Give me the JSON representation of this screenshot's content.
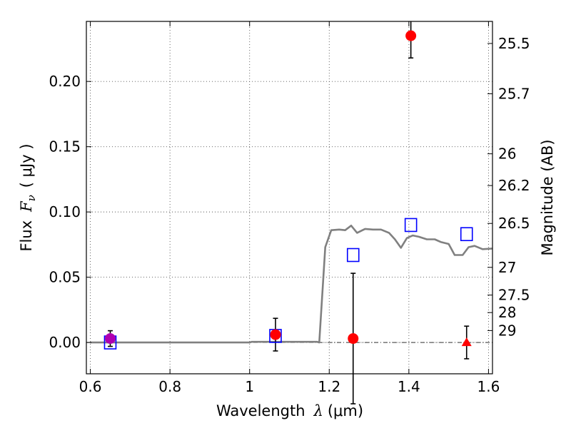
{
  "chart_data": {
    "type": "scatter",
    "xlabel": "Wavelength",
    "xlabel_symbol": "λ",
    "xlabel_unit": "(μm)",
    "ylabel": "Flux",
    "ylabel_symbol": "F",
    "ylabel_sub": "ν",
    "ylabel_unit": "( μJy )",
    "y2label": "Magnitude (AB)",
    "xlim": [
      0.59,
      1.61
    ],
    "ylim": [
      -0.024,
      0.246
    ],
    "grid": true,
    "xticks": [
      {
        "value": 0.6,
        "label": "0.6"
      },
      {
        "value": 0.8,
        "label": "0.8"
      },
      {
        "value": 1.0,
        "label": "1"
      },
      {
        "value": 1.2,
        "label": "1.2"
      },
      {
        "value": 1.4,
        "label": "1.4"
      },
      {
        "value": 1.6,
        "label": "1.6"
      }
    ],
    "yticks": [
      {
        "value": 0.0,
        "label": "0.00"
      },
      {
        "value": 0.05,
        "label": "0.05"
      },
      {
        "value": 0.1,
        "label": "0.10"
      },
      {
        "value": 0.15,
        "label": "0.15"
      },
      {
        "value": 0.2,
        "label": "0.20"
      }
    ],
    "y2ticks": [
      {
        "mag": 25.5,
        "label": "25.5"
      },
      {
        "mag": 25.7,
        "label": "25.7"
      },
      {
        "mag": 26.0,
        "label": "26"
      },
      {
        "mag": 26.2,
        "label": "26.2"
      },
      {
        "mag": 26.5,
        "label": "26.5"
      },
      {
        "mag": 27.0,
        "label": "27"
      },
      {
        "mag": 27.5,
        "label": "27.5"
      },
      {
        "mag": 28.0,
        "label": "28"
      },
      {
        "mag": 29.0,
        "label": "29"
      }
    ],
    "colors": {
      "observed": "#ff0000",
      "model": "#0000ff",
      "overlap": "#b000b0",
      "sed": "#808080",
      "errorbar": "#000000",
      "grid": "#555555"
    },
    "observed": [
      {
        "x": 0.65,
        "y": 0.003,
        "yerr": 0.006,
        "marker": "circle"
      },
      {
        "x": 1.065,
        "y": 0.006,
        "yerr": 0.0125,
        "marker": "circle"
      },
      {
        "x": 1.26,
        "y": 0.003,
        "yerr": 0.05,
        "marker": "circle"
      },
      {
        "x": 1.405,
        "y": 0.235,
        "yerr": 0.017,
        "marker": "circle"
      },
      {
        "x": 1.545,
        "y": 0.0,
        "yerr": 0.0125,
        "marker": "triangle"
      }
    ],
    "model_points": [
      {
        "x": 0.65,
        "y": 0.0
      },
      {
        "x": 1.065,
        "y": 0.005
      },
      {
        "x": 1.26,
        "y": 0.067
      },
      {
        "x": 1.405,
        "y": 0.09
      },
      {
        "x": 1.545,
        "y": 0.083
      }
    ],
    "sed_curve": [
      [
        0.6,
        0.0
      ],
      [
        1.0,
        0.0
      ],
      [
        1.005,
        0.0005
      ],
      [
        1.17,
        0.0005
      ],
      [
        1.175,
        0.0
      ],
      [
        1.19,
        0.073
      ],
      [
        1.205,
        0.086
      ],
      [
        1.225,
        0.0865
      ],
      [
        1.24,
        0.086
      ],
      [
        1.255,
        0.0895
      ],
      [
        1.27,
        0.084
      ],
      [
        1.29,
        0.087
      ],
      [
        1.31,
        0.0865
      ],
      [
        1.33,
        0.0865
      ],
      [
        1.35,
        0.084
      ],
      [
        1.365,
        0.079
      ],
      [
        1.38,
        0.0725
      ],
      [
        1.395,
        0.08
      ],
      [
        1.41,
        0.082
      ],
      [
        1.425,
        0.081
      ],
      [
        1.445,
        0.079
      ],
      [
        1.465,
        0.079
      ],
      [
        1.48,
        0.077
      ],
      [
        1.5,
        0.0755
      ],
      [
        1.515,
        0.067
      ],
      [
        1.535,
        0.067
      ],
      [
        1.55,
        0.073
      ],
      [
        1.565,
        0.074
      ],
      [
        1.585,
        0.0715
      ],
      [
        1.61,
        0.072
      ]
    ]
  }
}
